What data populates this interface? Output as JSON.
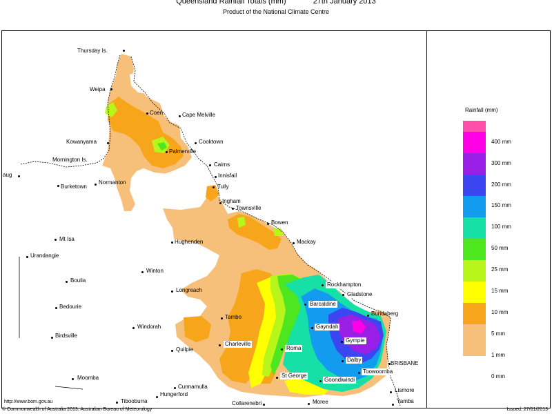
{
  "header": {
    "title": "Queensland Rainfall Totals (mm)",
    "date": "27th January 2013",
    "subtitle": "Product of the National Climate Centre"
  },
  "legend": {
    "title": "Rainfall (mm)",
    "items": [
      {
        "label": "400 mm",
        "color": "#ff4fa8"
      },
      {
        "label": "300 mm",
        "color": "#ff00e6"
      },
      {
        "label": "200 mm",
        "color": "#9a1fe6"
      },
      {
        "label": "150 mm",
        "color": "#3c46f0"
      },
      {
        "label": "100 mm",
        "color": "#139bf0"
      },
      {
        "label": "50 mm",
        "color": "#16e0a6"
      },
      {
        "label": "25 mm",
        "color": "#4ee61e"
      },
      {
        "label": "15 mm",
        "color": "#b8f51a"
      },
      {
        "label": "10 mm",
        "color": "#ffff00"
      },
      {
        "label": "5 mm",
        "color": "#f7a61b"
      },
      {
        "label": "1 mm",
        "color": "#f7c07a"
      },
      {
        "label": "0 mm",
        "color": "#ffffff"
      }
    ]
  },
  "places": [
    {
      "name": "Thursday Is.",
      "boxed": false
    },
    {
      "name": "Weipa",
      "boxed": false
    },
    {
      "name": "Coen",
      "boxed": false
    },
    {
      "name": "Cape Melville",
      "boxed": false
    },
    {
      "name": "Kowanyama",
      "boxed": false
    },
    {
      "name": "Cooktown",
      "boxed": false
    },
    {
      "name": "Palmerville",
      "boxed": false
    },
    {
      "name": "Mornington Is.",
      "boxed": false
    },
    {
      "name": "Cairns",
      "boxed": false
    },
    {
      "name": "Innisfail",
      "boxed": false
    },
    {
      "name": "Burketown",
      "boxed": false
    },
    {
      "name": "Normanton",
      "boxed": false
    },
    {
      "name": "Tully",
      "boxed": false
    },
    {
      "name": "Ingham",
      "boxed": false
    },
    {
      "name": "Townsville",
      "boxed": false
    },
    {
      "name": "Bowen",
      "boxed": false
    },
    {
      "name": "Mt Isa",
      "boxed": false
    },
    {
      "name": "Hughenden",
      "boxed": false
    },
    {
      "name": "Mackay",
      "boxed": false
    },
    {
      "name": "Urandangie",
      "boxed": false
    },
    {
      "name": "Winton",
      "boxed": false
    },
    {
      "name": "Boulia",
      "boxed": false
    },
    {
      "name": "Rockhampton",
      "boxed": true
    },
    {
      "name": "Gladstone",
      "boxed": true
    },
    {
      "name": "Longreach",
      "boxed": false
    },
    {
      "name": "Barcaldine",
      "boxed": true
    },
    {
      "name": "Bundaberg",
      "boxed": false
    },
    {
      "name": "Bedourie",
      "boxed": false
    },
    {
      "name": "Tambo",
      "boxed": false
    },
    {
      "name": "Gayndah",
      "boxed": true
    },
    {
      "name": "Windorah",
      "boxed": false
    },
    {
      "name": "Birdsville",
      "boxed": false
    },
    {
      "name": "Gympie",
      "boxed": true
    },
    {
      "name": "Charleville",
      "boxed": true
    },
    {
      "name": "Roma",
      "boxed": true
    },
    {
      "name": "Quilpie",
      "boxed": false
    },
    {
      "name": "Dalby",
      "boxed": true
    },
    {
      "name": "BRISBANE",
      "boxed": false
    },
    {
      "name": "Toowoomba",
      "boxed": true
    },
    {
      "name": "St George",
      "boxed": true
    },
    {
      "name": "Goondiwindi",
      "boxed": true
    },
    {
      "name": "Moomba",
      "boxed": false
    },
    {
      "name": "Lismore",
      "boxed": false
    },
    {
      "name": "Cunnamulla",
      "boxed": false
    },
    {
      "name": "Hungerford",
      "boxed": false
    },
    {
      "name": "Tibooburra",
      "boxed": false
    },
    {
      "name": "Collarenebri",
      "boxed": false
    },
    {
      "name": "Moree",
      "boxed": false
    },
    {
      "name": "Yamba",
      "boxed": false
    },
    {
      "name": "aug",
      "boxed": false
    }
  ],
  "footer": {
    "url": "http://www.bom.gov.au",
    "copyright": "© Commonwealth of Australia 2013, Australian Bureau of Meteorology",
    "issued": "Issued: 27/01/2013"
  }
}
